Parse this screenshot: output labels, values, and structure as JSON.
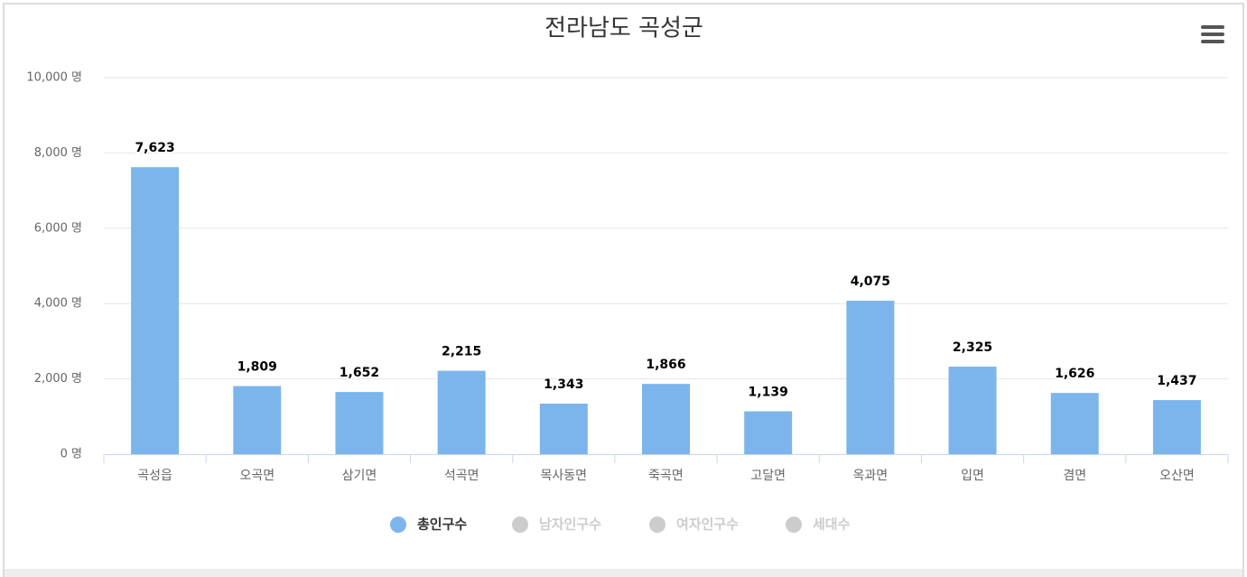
{
  "chart_data": {
    "type": "bar",
    "title": "전라남도 곡성군",
    "categories": [
      "곡성읍",
      "오곡면",
      "삼기면",
      "석곡면",
      "목사동면",
      "죽곡면",
      "고달면",
      "옥과면",
      "입면",
      "겸면",
      "오산면"
    ],
    "series": [
      {
        "name": "총인구수",
        "color": "#7cb5ec",
        "values": [
          7623,
          1809,
          1652,
          2215,
          1343,
          1866,
          1139,
          4075,
          2325,
          1626,
          1437
        ],
        "value_labels": [
          "7,623",
          "1,809",
          "1,652",
          "2,215",
          "1,343",
          "1,866",
          "1,139",
          "4,075",
          "2,325",
          "1,626",
          "1,437"
        ]
      }
    ],
    "legend_hidden": [
      "남자인구수",
      "여자인구수",
      "세대수"
    ],
    "ylim": [
      0,
      10000
    ],
    "yticks": [
      {
        "value": 0,
        "label": "0 명"
      },
      {
        "value": 2000,
        "label": "2,000 명"
      },
      {
        "value": 4000,
        "label": "4,000 명"
      },
      {
        "value": 6000,
        "label": "6,000 명"
      },
      {
        "value": 8000,
        "label": "8,000 명"
      },
      {
        "value": 10000,
        "label": "10,000 명"
      }
    ],
    "grid": true
  }
}
